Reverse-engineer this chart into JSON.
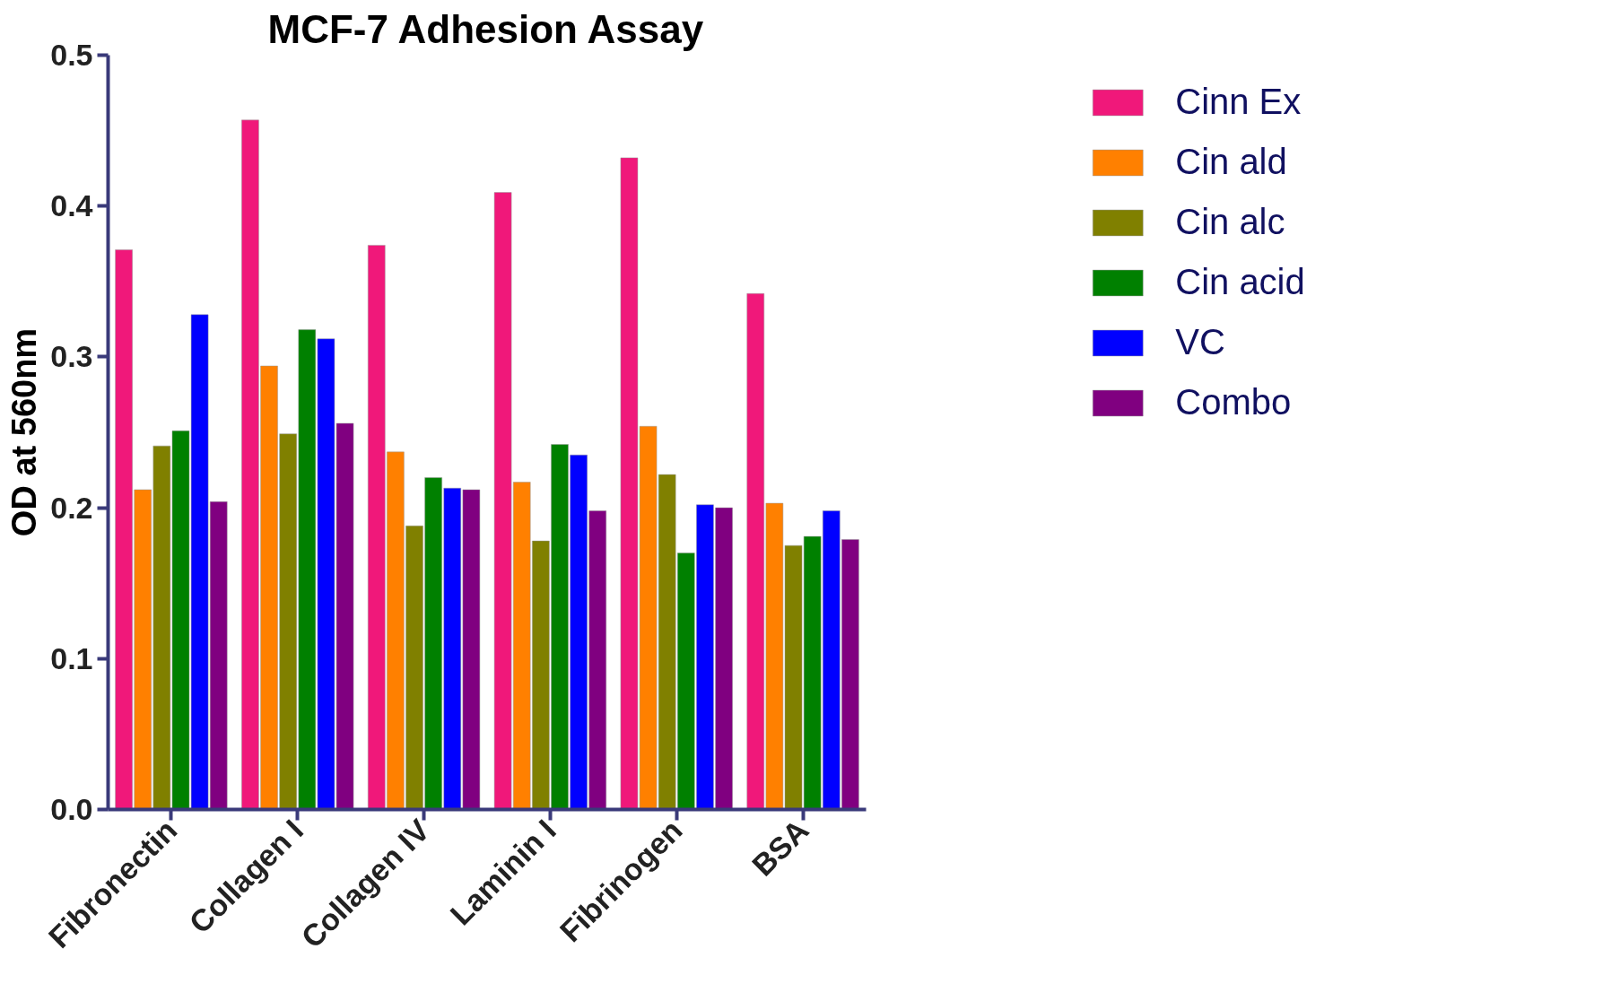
{
  "chart_data": {
    "type": "bar",
    "title": "MCF-7 Adhesion Assay",
    "ylabel": "OD at 560nm",
    "categories": [
      "Fibronectin",
      "Collagen I",
      "Collagen IV",
      "Laminin I",
      "Fibrinogen",
      "BSA"
    ],
    "series": [
      {
        "name": "Cinn Ex",
        "color": "#f0187a",
        "values": [
          0.371,
          0.457,
          0.374,
          0.409,
          0.432,
          0.342
        ]
      },
      {
        "name": "Cin ald",
        "color": "#ff8000",
        "values": [
          0.212,
          0.294,
          0.237,
          0.217,
          0.254,
          0.203
        ]
      },
      {
        "name": "Cin alc",
        "color": "#808000",
        "values": [
          0.241,
          0.249,
          0.188,
          0.178,
          0.222,
          0.175
        ]
      },
      {
        "name": "Cin acid",
        "color": "#008000",
        "values": [
          0.251,
          0.318,
          0.22,
          0.242,
          0.17,
          0.181
        ]
      },
      {
        "name": "VC",
        "color": "#0000ff",
        "values": [
          0.328,
          0.312,
          0.213,
          0.235,
          0.202,
          0.198
        ]
      },
      {
        "name": "Combo",
        "color": "#800080",
        "values": [
          0.204,
          0.256,
          0.212,
          0.198,
          0.2,
          0.179
        ]
      }
    ],
    "ylim": [
      0,
      0.5
    ],
    "yticks": [
      {
        "value": 0,
        "label": "0.0"
      },
      0.1,
      0.2,
      0.3,
      0.4,
      0.5
    ],
    "grid": false,
    "legend": "top right"
  }
}
